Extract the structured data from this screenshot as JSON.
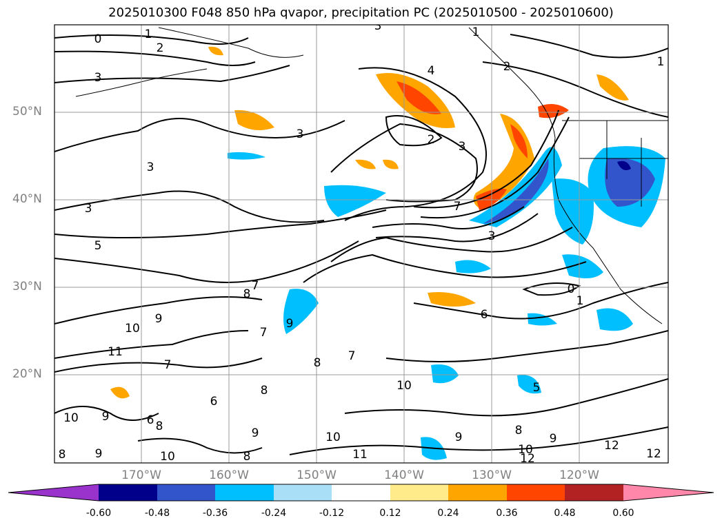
{
  "title": "2025010300 F048 850 hPa qvapor, precipitation PC (2025010500 - 2025010600)",
  "latitude_labels": [
    "50°N",
    "40°N",
    "30°N",
    "20°N"
  ],
  "longitude_labels": [
    "170°W",
    "160°W",
    "150°W",
    "140°W",
    "130°W",
    "120°W"
  ],
  "contour_labels": [
    "0",
    "1",
    "2",
    "3",
    "4",
    "5",
    "6",
    "7",
    "8",
    "9",
    "10",
    "11",
    "12"
  ],
  "colorbar": {
    "ticks": [
      "-0.60",
      "-0.48",
      "-0.36",
      "-0.24",
      "-0.12",
      "0.12",
      "0.24",
      "0.36",
      "0.48",
      "0.60"
    ],
    "colors": [
      "#9933cc",
      "#00008b",
      "#3355cc",
      "#00bfff",
      "#aadff8",
      "#ffffff",
      "#ffeb8a",
      "#ffa500",
      "#ff4500",
      "#b22222",
      "#ff88aa"
    ]
  }
}
